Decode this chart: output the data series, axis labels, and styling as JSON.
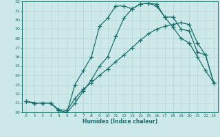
{
  "xlabel": "Humidex (Indice chaleur)",
  "bg_color": "#cce8e8",
  "grid_color": "#aacccc",
  "line_color": "#1a6e6e",
  "xlim": [
    -0.5,
    23.5
  ],
  "ylim": [
    20,
    32
  ],
  "xticks": [
    0,
    1,
    2,
    3,
    4,
    5,
    6,
    7,
    8,
    9,
    10,
    11,
    12,
    13,
    14,
    15,
    16,
    17,
    18,
    19,
    20,
    21,
    22,
    23
  ],
  "yticks": [
    20,
    21,
    22,
    23,
    24,
    25,
    26,
    27,
    28,
    29,
    30,
    31,
    32
  ],
  "line1_x": [
    0,
    1,
    2,
    3,
    4,
    5,
    6,
    7,
    8,
    9,
    10,
    11,
    12,
    13,
    14,
    15,
    16,
    17,
    18,
    19,
    20,
    21,
    22,
    23
  ],
  "line1_y": [
    21.2,
    21.0,
    21.0,
    21.0,
    20.3,
    20.2,
    21.5,
    22.5,
    23.2,
    24.0,
    24.7,
    25.5,
    26.2,
    27.0,
    27.8,
    28.5,
    29.0,
    29.3,
    29.5,
    29.7,
    29.5,
    27.5,
    26.2,
    23.2
  ],
  "line2_x": [
    0,
    1,
    2,
    3,
    4,
    5,
    6,
    7,
    8,
    9,
    10,
    11,
    12,
    13,
    14,
    15,
    16,
    17,
    18,
    19,
    20,
    21,
    22,
    23
  ],
  "line2_y": [
    21.2,
    21.0,
    21.0,
    21.0,
    20.2,
    20.0,
    23.0,
    24.5,
    26.0,
    29.3,
    30.2,
    31.5,
    31.5,
    31.2,
    31.7,
    31.8,
    31.5,
    30.3,
    30.3,
    29.0,
    28.8,
    26.5,
    26.2,
    23.2
  ],
  "line3_x": [
    0,
    1,
    2,
    3,
    4,
    5,
    6,
    7,
    8,
    9,
    10,
    11,
    12,
    13,
    14,
    15,
    16,
    17,
    18,
    19,
    20,
    21,
    22,
    23
  ],
  "line3_y": [
    21.2,
    21.0,
    21.0,
    21.0,
    20.2,
    20.0,
    21.0,
    22.3,
    23.5,
    25.0,
    26.0,
    28.2,
    30.2,
    31.2,
    31.7,
    31.8,
    31.7,
    30.3,
    29.2,
    28.0,
    27.5,
    26.0,
    24.5,
    23.2
  ]
}
